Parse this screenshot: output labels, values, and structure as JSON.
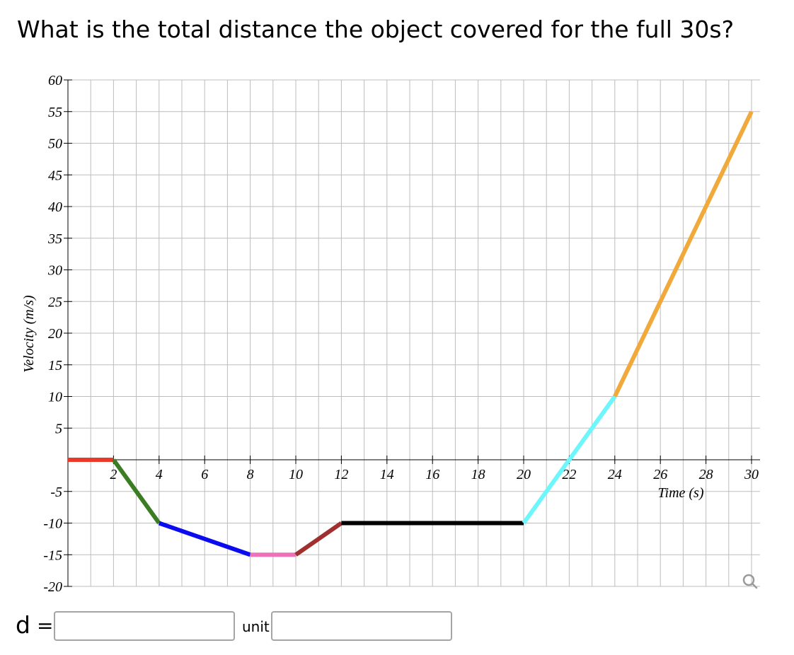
{
  "question": "What is the total distance the object covered for the full 30s?",
  "answer": {
    "d_label": "d",
    "equals": "=",
    "d_value": "",
    "unit_label": "unit",
    "unit_value": ""
  },
  "icons": {
    "zoom": "magnifier-icon"
  },
  "chart_data": {
    "type": "line",
    "xlabel": "Time (s)",
    "ylabel": "Velocity (m/s)",
    "xlim": [
      0,
      30
    ],
    "ylim": [
      -20,
      60
    ],
    "x_ticks": [
      2,
      4,
      6,
      8,
      10,
      12,
      14,
      16,
      18,
      20,
      22,
      24,
      26,
      28,
      30
    ],
    "y_ticks": [
      -20,
      -15,
      -10,
      -5,
      5,
      10,
      15,
      20,
      25,
      30,
      35,
      40,
      45,
      50,
      55,
      60
    ],
    "grid": true,
    "segments": [
      {
        "x": [
          0,
          2
        ],
        "y": [
          0,
          0
        ],
        "color": "#e8392a"
      },
      {
        "x": [
          2,
          4
        ],
        "y": [
          0,
          -10
        ],
        "color": "#3a7d22"
      },
      {
        "x": [
          4,
          8
        ],
        "y": [
          -10,
          -15
        ],
        "color": "#0b0bf0"
      },
      {
        "x": [
          8,
          10
        ],
        "y": [
          -15,
          -15
        ],
        "color": "#ee72b7"
      },
      {
        "x": [
          10,
          12
        ],
        "y": [
          -15,
          -10
        ],
        "color": "#a03030"
      },
      {
        "x": [
          12,
          20
        ],
        "y": [
          -10,
          -10
        ],
        "color": "#000000"
      },
      {
        "x": [
          20,
          24
        ],
        "y": [
          -10,
          10
        ],
        "color": "#6df6fb"
      },
      {
        "x": [
          24,
          30
        ],
        "y": [
          10,
          55
        ],
        "color": "#f0a93a"
      }
    ]
  }
}
